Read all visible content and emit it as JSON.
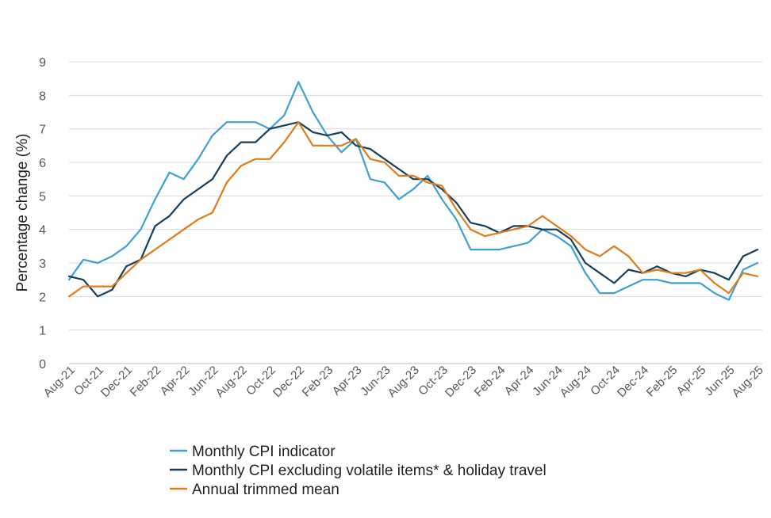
{
  "chart_data": {
    "type": "line",
    "title": "",
    "xlabel": "",
    "ylabel": "Percentage change (%)",
    "ylim": [
      0,
      9
    ],
    "yticks": [
      0,
      1,
      2,
      3,
      4,
      5,
      6,
      7,
      8,
      9
    ],
    "grid": true,
    "legend_position": "bottom",
    "x": [
      "Aug-21",
      "Sep-21",
      "Oct-21",
      "Nov-21",
      "Dec-21",
      "Jan-22",
      "Feb-22",
      "Mar-22",
      "Apr-22",
      "May-22",
      "Jun-22",
      "Jul-22",
      "Aug-22",
      "Sep-22",
      "Oct-22",
      "Nov-22",
      "Dec-22",
      "Jan-23",
      "Feb-23",
      "Mar-23",
      "Apr-23",
      "May-23",
      "Jun-23",
      "Jul-23",
      "Aug-23",
      "Sep-23",
      "Oct-23",
      "Nov-23",
      "Dec-23",
      "Jan-24",
      "Feb-24",
      "Mar-24",
      "Apr-24",
      "May-24",
      "Jun-24",
      "Jul-24",
      "Aug-24",
      "Sep-24",
      "Oct-24",
      "Nov-24",
      "Dec-24",
      "Jan-25",
      "Feb-25",
      "Mar-25",
      "Apr-25",
      "May-25",
      "Jun-25",
      "Jul-25",
      "Aug-25"
    ],
    "tick_labels": [
      "Aug-21",
      "Oct-21",
      "Dec-21",
      "Feb-22",
      "Apr-22",
      "Jun-22",
      "Aug-22",
      "Oct-22",
      "Dec-22",
      "Feb-23",
      "Apr-23",
      "Jun-23",
      "Aug-23",
      "Oct-23",
      "Dec-23",
      "Feb-24",
      "Apr-24",
      "Jun-24",
      "Aug-24",
      "Oct-24",
      "Dec-24",
      "Feb-25",
      "Apr-25",
      "Jun-25",
      "Aug-25"
    ],
    "series": [
      {
        "name": "Monthly CPI indicator",
        "color": "#3fa0d4",
        "values": [
          2.5,
          3.1,
          3.0,
          3.2,
          3.5,
          4.0,
          4.9,
          5.7,
          5.5,
          6.1,
          6.8,
          7.2,
          7.2,
          7.2,
          7.0,
          7.4,
          8.4,
          7.5,
          6.8,
          6.3,
          6.7,
          5.5,
          5.4,
          4.9,
          5.2,
          5.6,
          4.9,
          4.3,
          3.4,
          3.4,
          3.4,
          3.5,
          3.6,
          4.0,
          3.8,
          3.5,
          2.7,
          2.1,
          2.1,
          2.3,
          2.5,
          2.5,
          2.4,
          2.4,
          2.4,
          2.1,
          1.9,
          2.8,
          3.0
        ]
      },
      {
        "name": "Monthly CPI excluding volatile items* & holiday travel",
        "color": "#163f5c",
        "values": [
          2.6,
          2.5,
          2.0,
          2.2,
          2.9,
          3.1,
          4.1,
          4.4,
          4.9,
          5.2,
          5.5,
          6.2,
          6.6,
          6.6,
          7.0,
          7.1,
          7.2,
          6.9,
          6.8,
          6.9,
          6.5,
          6.4,
          6.1,
          5.8,
          5.5,
          5.5,
          5.2,
          4.8,
          4.2,
          4.1,
          3.9,
          4.1,
          4.1,
          4.0,
          4.0,
          3.7,
          3.0,
          2.7,
          2.4,
          2.8,
          2.7,
          2.9,
          2.7,
          2.6,
          2.8,
          2.7,
          2.5,
          3.2,
          3.4
        ]
      },
      {
        "name": "Annual trimmed mean",
        "color": "#e07b1a",
        "values": [
          2.0,
          2.3,
          2.3,
          2.3,
          2.7,
          3.1,
          3.4,
          3.7,
          4.0,
          4.3,
          4.5,
          5.4,
          5.9,
          6.1,
          6.1,
          6.6,
          7.2,
          6.5,
          6.5,
          6.5,
          6.7,
          6.1,
          6.0,
          5.6,
          5.6,
          5.4,
          5.3,
          4.6,
          4.0,
          3.8,
          3.9,
          4.0,
          4.1,
          4.4,
          4.1,
          3.8,
          3.4,
          3.2,
          3.5,
          3.2,
          2.7,
          2.8,
          2.7,
          2.7,
          2.8,
          2.4,
          2.1,
          2.7,
          2.6
        ]
      }
    ]
  }
}
